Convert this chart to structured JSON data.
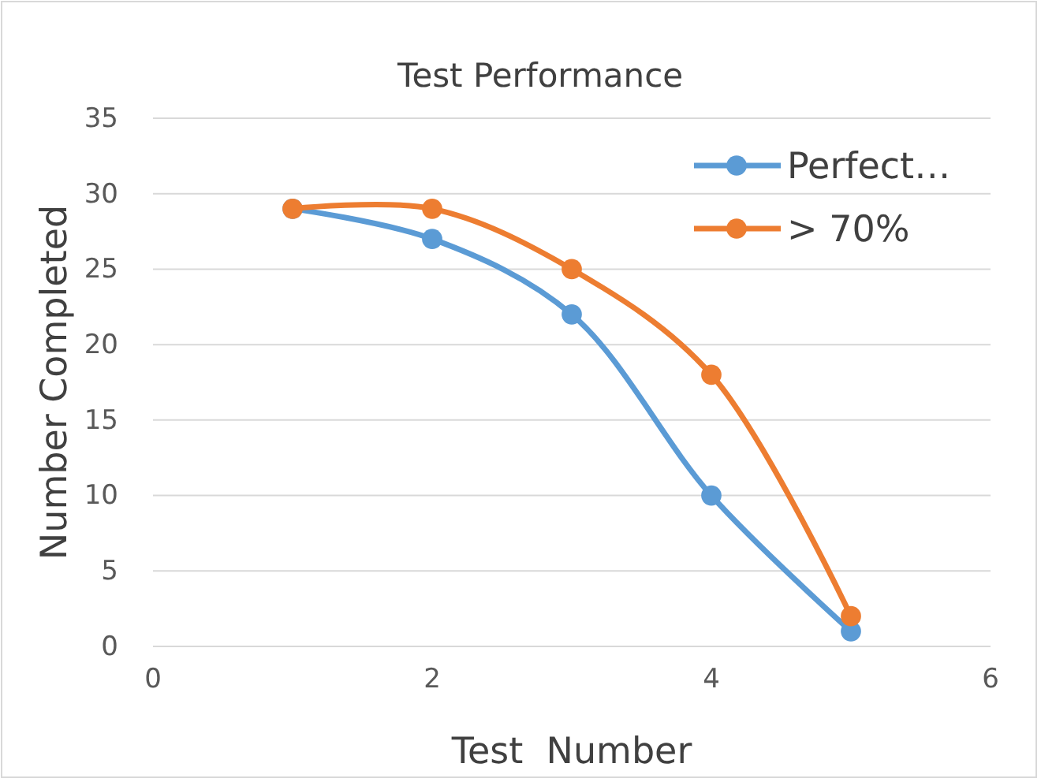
{
  "chart_data": {
    "type": "line",
    "title": "Test Performance",
    "xlabel": "Test  Number",
    "ylabel": "Number Completed",
    "x": [
      1,
      2,
      3,
      4,
      5
    ],
    "series": [
      {
        "name": "Perfect…",
        "color": "#5b9bd5",
        "values": [
          29,
          27,
          22,
          10,
          1
        ]
      },
      {
        "name": "> 70%",
        "color": "#ed7d31",
        "values": [
          29,
          29,
          25,
          18,
          2
        ]
      }
    ],
    "xlim": [
      0,
      6
    ],
    "xticks": [
      0,
      2,
      4,
      6
    ],
    "ylim": [
      0,
      35
    ],
    "yticks": [
      0,
      5,
      10,
      15,
      20,
      25,
      30,
      35
    ],
    "grid": "y",
    "legend": "top right",
    "marker": "circle",
    "line_style": "solid"
  }
}
